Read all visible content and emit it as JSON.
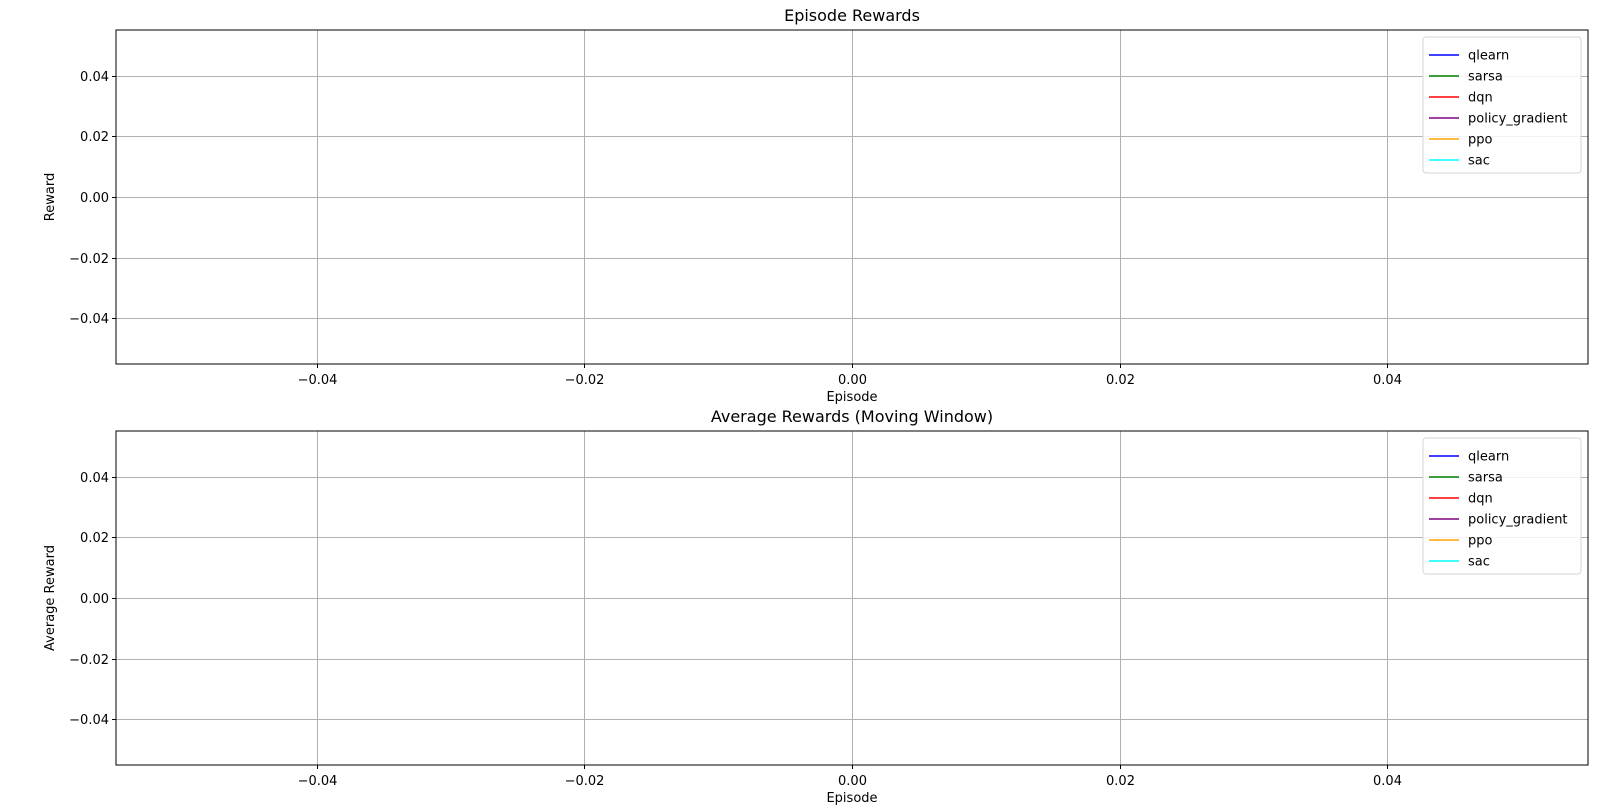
{
  "chart_data": [
    {
      "type": "line",
      "title": "Episode Rewards",
      "xlabel": "Episode",
      "ylabel": "Reward",
      "xlim": [
        -0.055,
        0.055
      ],
      "ylim": [
        -0.055,
        0.055
      ],
      "xticks": [
        -0.04,
        -0.02,
        0.0,
        0.02,
        0.04
      ],
      "xtick_labels": [
        "−0.04",
        "−0.02",
        "0.00",
        "0.02",
        "0.04"
      ],
      "yticks": [
        0.04,
        0.02,
        0.0,
        -0.02,
        -0.04
      ],
      "ytick_labels": [
        "0.04",
        "0.02",
        "0.00",
        "−0.02",
        "−0.04"
      ],
      "grid": true,
      "legend_position": "top-right",
      "series": [
        {
          "name": "qlearn",
          "color": "#0000ff",
          "x": [],
          "y": []
        },
        {
          "name": "sarsa",
          "color": "#008000",
          "x": [],
          "y": []
        },
        {
          "name": "dqn",
          "color": "#ff0000",
          "x": [],
          "y": []
        },
        {
          "name": "policy_gradient",
          "color": "#800080",
          "x": [],
          "y": []
        },
        {
          "name": "ppo",
          "color": "#ffa500",
          "x": [],
          "y": []
        },
        {
          "name": "sac",
          "color": "#00ffff",
          "x": [],
          "y": []
        }
      ]
    },
    {
      "type": "line",
      "title": "Average Rewards (Moving Window)",
      "xlabel": "Episode",
      "ylabel": "Average Reward",
      "xlim": [
        -0.055,
        0.055
      ],
      "ylim": [
        -0.055,
        0.055
      ],
      "xticks": [
        -0.04,
        -0.02,
        0.0,
        0.02,
        0.04
      ],
      "xtick_labels": [
        "−0.04",
        "−0.02",
        "0.00",
        "0.02",
        "0.04"
      ],
      "yticks": [
        0.04,
        0.02,
        0.0,
        -0.02,
        -0.04
      ],
      "ytick_labels": [
        "0.04",
        "0.02",
        "0.00",
        "−0.02",
        "−0.04"
      ],
      "grid": true,
      "legend_position": "top-right",
      "series": [
        {
          "name": "qlearn",
          "color": "#0000ff",
          "x": [],
          "y": []
        },
        {
          "name": "sarsa",
          "color": "#008000",
          "x": [],
          "y": []
        },
        {
          "name": "dqn",
          "color": "#ff0000",
          "x": [],
          "y": []
        },
        {
          "name": "policy_gradient",
          "color": "#800080",
          "x": [],
          "y": []
        },
        {
          "name": "ppo",
          "color": "#ffa500",
          "x": [],
          "y": []
        },
        {
          "name": "sac",
          "color": "#00ffff",
          "x": [],
          "y": []
        }
      ]
    }
  ]
}
